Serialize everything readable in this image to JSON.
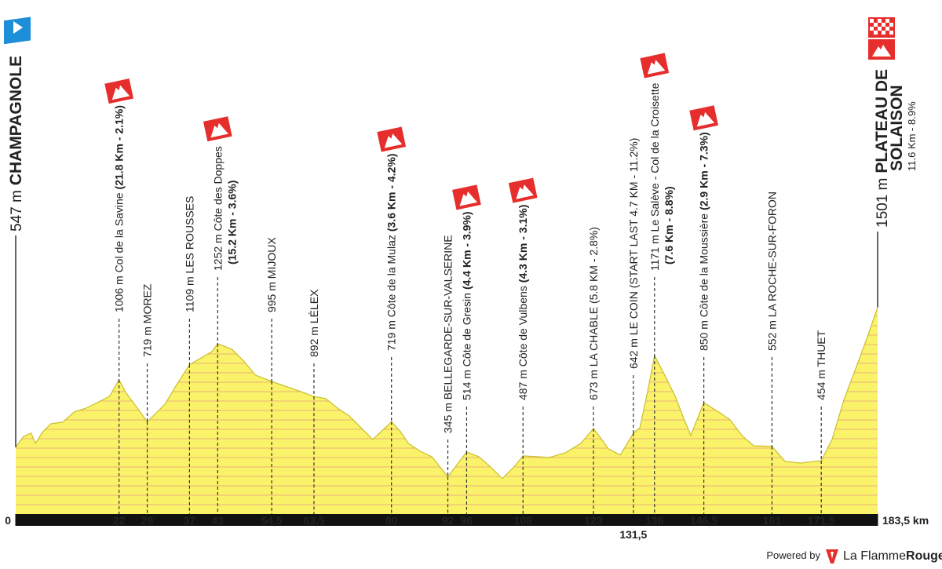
{
  "chart_data": {
    "type": "area",
    "color": "#faf36a",
    "stripe_color": "#e9b27c",
    "xlim": [
      0,
      183.5
    ],
    "xticks": [
      0,
      {
        "value": 183.5,
        "label": "183,5 km"
      }
    ],
    "ylim": [
      90,
      1600
    ],
    "x": [
      0,
      1.7,
      3.3,
      4.2,
      5.8,
      7.5,
      10,
      12.5,
      15,
      18.4,
      20,
      22,
      23.4,
      25.9,
      28,
      31.8,
      34.3,
      37,
      41.8,
      43,
      46,
      48.5,
      51,
      54.5,
      60.2,
      63.5,
      66,
      68.5,
      71,
      73.5,
      76,
      80,
      81.9,
      83.6,
      86.1,
      88.6,
      92,
      93.6,
      96,
      98.6,
      101.1,
      103.6,
      106.1,
      108,
      113.6,
      117,
      120.3,
      123,
      124.5,
      126.2,
      128.7,
      131.5,
      132.9,
      134.5,
      136,
      137.9,
      140.4,
      142,
      143.7,
      146.5,
      149.6,
      152.1,
      154.6,
      157.1,
      161,
      163.8,
      167.1,
      171.5,
      173.8,
      176.3,
      178.8,
      181.3,
      183.5
    ],
    "values": [
      547,
      620,
      642,
      572,
      653,
      706,
      717,
      787,
      813,
      867,
      894,
      1006,
      921,
      813,
      719,
      840,
      974,
      1109,
      1199,
      1252,
      1215,
      1135,
      1039,
      995,
      931,
      892,
      878,
      813,
      760,
      680,
      599,
      719,
      653,
      572,
      519,
      481,
      345,
      412,
      514,
      481,
      412,
      332,
      412,
      487,
      476,
      508,
      572,
      673,
      610,
      535,
      492,
      642,
      679,
      921,
      1171,
      1055,
      894,
      760,
      626,
      850,
      787,
      733,
      626,
      556,
      552,
      449,
      438,
      454,
      599,
      867,
      1081,
      1296,
      1501
    ],
    "start": {
      "elevation": 547,
      "elevation_label": "547 m",
      "name": "CHAMPAGNOLE"
    },
    "finish": {
      "elevation": 1501,
      "elevation_label": "1501 m",
      "name": [
        "PLATEAU DE",
        "SOLAISON"
      ],
      "climb": "11.6 Km - 8.9%"
    },
    "waypoints": [
      {
        "km": 22,
        "elevation": 1006,
        "label": "1006 m Col de la Savine",
        "climb": "(21.8 Km - 2.1%)"
      },
      {
        "km": 28,
        "elevation": 719,
        "label": "719 m MOREZ"
      },
      {
        "km": 37,
        "elevation": 1109,
        "label": "1109 m LES ROUSSES"
      },
      {
        "km": 43,
        "elevation": 1252,
        "label": "1252 m Côte des Doppes",
        "climb": "(15.2 Km - 3.6%)"
      },
      {
        "km": 54.5,
        "km_label": "54,5",
        "elevation": 995,
        "label": "995 m MIJOUX"
      },
      {
        "km": 63.5,
        "km_label": "63,5",
        "elevation": 892,
        "label": "892 m LÉLEX"
      },
      {
        "km": 80,
        "elevation": 719,
        "label": "719 m Côte de la Mulaz",
        "climb": "(3.6 Km - 4.2%)"
      },
      {
        "km": 92,
        "elevation": 345,
        "label": "345 m BELLEGARDE-SUR-VALSERINE"
      },
      {
        "km": 96,
        "elevation": 514,
        "label": "514 m Côte de Gresin",
        "climb": "(4.4 Km - 3.9%)"
      },
      {
        "km": 108,
        "elevation": 487,
        "label": "487 m Côte de Vulbens",
        "climb": "(4.3 Km - 3.1%)"
      },
      {
        "km": 123,
        "elevation": 673,
        "label": "673 m LA CHABLE (5.8 KM - 2.8%)"
      },
      {
        "km": 131.5,
        "km_label": "131,5",
        "elevation": 642,
        "label": "642 m LE COIN (START LAST 4.7 KM - 11.2%)"
      },
      {
        "km": 136,
        "elevation": 1171,
        "label": "1171 m Le Salève - Col de la Croisette",
        "climb": "(7.6 Km - 8.8%)"
      },
      {
        "km": 146.5,
        "km_label": "146,5",
        "elevation": 850,
        "label": "850 m Côte de la Moussière",
        "climb": "(2.9 Km - 7.3%)"
      },
      {
        "km": 161,
        "elevation": 552,
        "label": "552 m LA ROCHE-SUR-FORON"
      },
      {
        "km": 171.5,
        "km_label": "171,5",
        "elevation": 454,
        "label": "454 m THUET"
      }
    ]
  },
  "footer": {
    "powered_by": "Powered by",
    "brand_light": "La Flamme",
    "brand_bold": "Rouge"
  }
}
